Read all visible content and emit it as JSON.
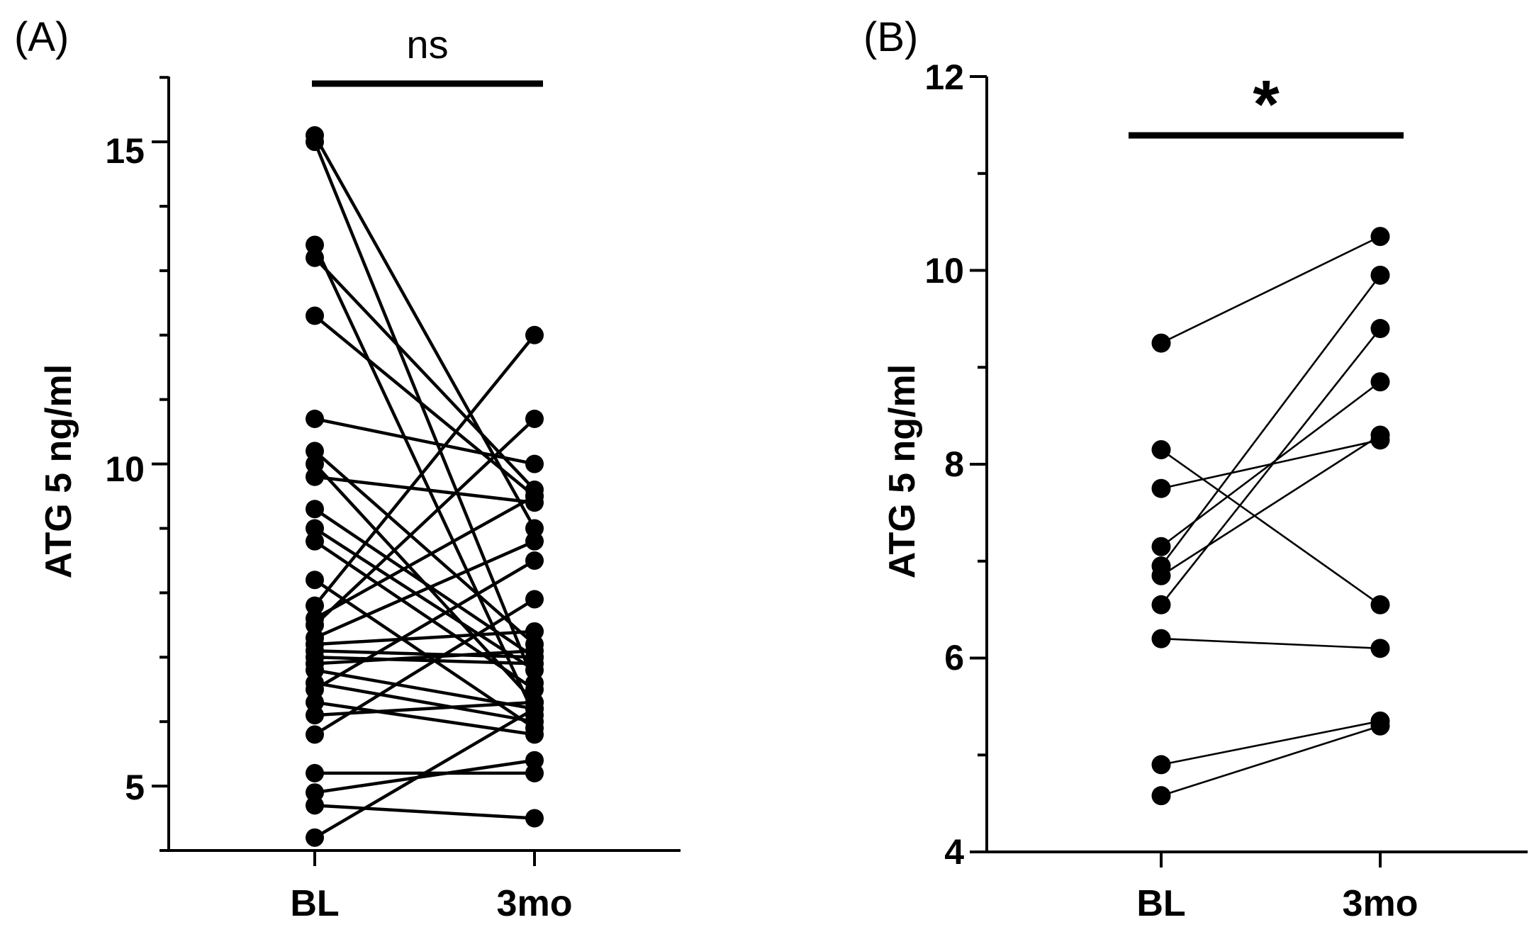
{
  "chart_data": [
    {
      "type": "scatter",
      "subtype": "paired-before-after",
      "panel_label": "(A)",
      "ylabel": "ATG 5 ng/ml",
      "categories": [
        "BL",
        "3mo"
      ],
      "ylim": [
        4,
        16
      ],
      "yticks_major": [
        "5",
        "10",
        "15"
      ],
      "significance": "ns",
      "pairs": [
        [
          15.1,
          9.0
        ],
        [
          15.0,
          6.6
        ],
        [
          13.4,
          6.1
        ],
        [
          13.2,
          9.6
        ],
        [
          12.3,
          9.5
        ],
        [
          10.7,
          10.0
        ],
        [
          10.2,
          7.2
        ],
        [
          10.0,
          6.3
        ],
        [
          9.8,
          9.4
        ],
        [
          9.3,
          7.0
        ],
        [
          9.0,
          6.8
        ],
        [
          8.8,
          6.5
        ],
        [
          8.2,
          5.9
        ],
        [
          7.8,
          12.0
        ],
        [
          7.6,
          9.5
        ],
        [
          7.5,
          10.7
        ],
        [
          7.3,
          8.8
        ],
        [
          7.2,
          7.4
        ],
        [
          7.1,
          7.0
        ],
        [
          7.0,
          6.9
        ],
        [
          6.9,
          7.1
        ],
        [
          6.8,
          6.2
        ],
        [
          6.6,
          6.0
        ],
        [
          6.5,
          8.5
        ],
        [
          6.3,
          5.8
        ],
        [
          6.1,
          6.3
        ],
        [
          5.8,
          7.9
        ],
        [
          5.2,
          5.2
        ],
        [
          4.9,
          5.4
        ],
        [
          4.7,
          4.5
        ],
        [
          4.2,
          6.2
        ]
      ]
    },
    {
      "type": "scatter",
      "subtype": "paired-before-after",
      "panel_label": "(B)",
      "ylabel": "ATG 5 ng/ml",
      "categories": [
        "BL",
        "3mo"
      ],
      "ylim": [
        4,
        12
      ],
      "yticks_major": [
        "4",
        "6",
        "8",
        "10",
        "12"
      ],
      "significance": "*",
      "pairs": [
        [
          9.25,
          10.35
        ],
        [
          8.15,
          6.55
        ],
        [
          7.75,
          8.25
        ],
        [
          7.15,
          8.85
        ],
        [
          6.95,
          9.95
        ],
        [
          6.85,
          8.3
        ],
        [
          6.55,
          9.4
        ],
        [
          6.2,
          6.1
        ],
        [
          4.9,
          5.35
        ],
        [
          4.58,
          5.3
        ]
      ]
    }
  ]
}
